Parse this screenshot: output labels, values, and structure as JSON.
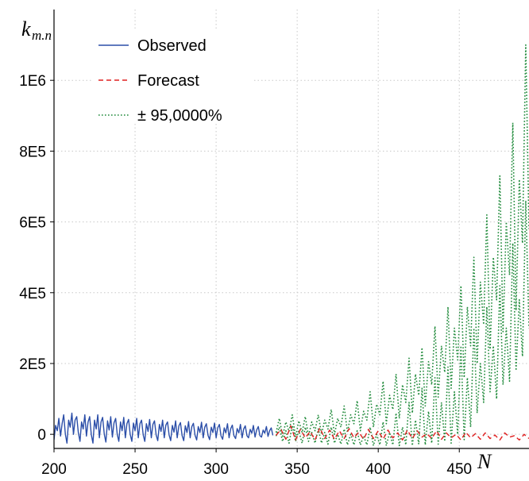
{
  "chart_data": {
    "type": "line",
    "title": "",
    "ylabel": {
      "main": "k",
      "sub": "m.n"
    },
    "xlabel": "N",
    "xlim": [
      200,
      493
    ],
    "ylim": [
      -40000,
      1200000
    ],
    "x_ticks": [
      200,
      250,
      300,
      350,
      400,
      450
    ],
    "x_tick_labels": [
      "200",
      "250",
      "300",
      "350",
      "400",
      "450"
    ],
    "y_ticks": [
      0,
      200000,
      400000,
      600000,
      800000,
      1000000
    ],
    "y_tick_labels": [
      "0",
      "2E5",
      "4E5",
      "6E5",
      "8E5",
      "1E6"
    ],
    "grid": true,
    "legend_position": "top-left",
    "colors": {
      "observed": "#2b4ea8",
      "forecast": "#e02020",
      "interval": "#1f8a3a",
      "grid": "#c8c8c8"
    },
    "series": [
      {
        "name": "Observed",
        "style": "solid",
        "x_start": 200,
        "x_step": 1,
        "values": [
          -15000,
          25000,
          10000,
          45000,
          -5000,
          30000,
          55000,
          0,
          -25000,
          40000,
          20000,
          60000,
          0,
          40000,
          50000,
          5000,
          -20000,
          35000,
          15000,
          55000,
          -5000,
          35000,
          50000,
          0,
          -25000,
          40000,
          15000,
          55000,
          -10000,
          35000,
          48000,
          0,
          -22000,
          38000,
          12000,
          50000,
          -8000,
          32000,
          45000,
          0,
          -20000,
          35000,
          10000,
          48000,
          -10000,
          30000,
          42000,
          0,
          -20000,
          32000,
          10000,
          45000,
          -10000,
          30000,
          40000,
          -2000,
          -20000,
          30000,
          8000,
          42000,
          -10000,
          28000,
          38000,
          -2000,
          -18000,
          28000,
          8000,
          40000,
          -10000,
          26000,
          35000,
          -2000,
          -18000,
          25000,
          6000,
          38000,
          -10000,
          24000,
          33000,
          -3000,
          -18000,
          24000,
          5000,
          36000,
          -10000,
          22000,
          31000,
          -3000,
          -16000,
          22000,
          5000,
          34000,
          -10000,
          20000,
          30000,
          -3000,
          -15000,
          20000,
          5000,
          32000,
          -10000,
          18000,
          28000,
          -4000,
          -14000,
          18000,
          4000,
          30000,
          -10000,
          16000,
          26000,
          -4000,
          -12000,
          16000,
          4000,
          28000,
          -10000,
          15000,
          24000,
          -4000,
          -10000,
          14000,
          3000,
          25000,
          -8000,
          12000,
          22000,
          -4000,
          -8000,
          12000,
          3000,
          22000,
          -6000,
          10000,
          18000,
          -3000
        ]
      },
      {
        "name": "Forecast",
        "style": "dashed",
        "points": [
          [
            337,
            -3000
          ],
          [
            340,
            14000
          ],
          [
            343,
            -14000
          ],
          [
            346,
            24000
          ],
          [
            349,
            -16000
          ],
          [
            352,
            14000
          ],
          [
            355,
            -10000
          ],
          [
            358,
            8000
          ],
          [
            361,
            -16000
          ],
          [
            364,
            18000
          ],
          [
            367,
            -12000
          ],
          [
            370,
            12000
          ],
          [
            373,
            -14000
          ],
          [
            376,
            10000
          ],
          [
            379,
            -12000
          ],
          [
            382,
            16000
          ],
          [
            385,
            -10000
          ],
          [
            388,
            6000
          ],
          [
            391,
            -14000
          ],
          [
            394,
            14000
          ],
          [
            397,
            -12000
          ],
          [
            400,
            10000
          ],
          [
            403,
            -14000
          ],
          [
            406,
            12000
          ],
          [
            409,
            -10000
          ],
          [
            412,
            4000
          ],
          [
            415,
            -16000
          ],
          [
            418,
            12000
          ],
          [
            421,
            -12000
          ],
          [
            424,
            10000
          ],
          [
            427,
            -8000
          ],
          [
            430,
            2000
          ],
          [
            433,
            -12000
          ],
          [
            436,
            10000
          ],
          [
            439,
            -14000
          ],
          [
            442,
            4000
          ],
          [
            445,
            -10000
          ],
          [
            448,
            0
          ],
          [
            451,
            -16000
          ],
          [
            454,
            6000
          ],
          [
            457,
            -10000
          ],
          [
            460,
            2000
          ],
          [
            463,
            -14000
          ],
          [
            466,
            4000
          ],
          [
            469,
            -12000
          ],
          [
            472,
            -2000
          ],
          [
            475,
            -16000
          ],
          [
            478,
            4000
          ],
          [
            481,
            -8000
          ],
          [
            484,
            -4000
          ],
          [
            487,
            -16000
          ],
          [
            490,
            0
          ],
          [
            493,
            -12000
          ]
        ]
      },
      {
        "name": "± 95,0000%",
        "style": "dotted",
        "upper": [
          [
            337,
            5000
          ],
          [
            339,
            45000
          ],
          [
            341,
            -5000
          ],
          [
            343,
            35000
          ],
          [
            345,
            8000
          ],
          [
            347,
            55000
          ],
          [
            349,
            -8000
          ],
          [
            351,
            38000
          ],
          [
            353,
            5000
          ],
          [
            355,
            50000
          ],
          [
            357,
            -5000
          ],
          [
            359,
            35000
          ],
          [
            361,
            10000
          ],
          [
            363,
            55000
          ],
          [
            365,
            0
          ],
          [
            367,
            40000
          ],
          [
            369,
            15000
          ],
          [
            371,
            70000
          ],
          [
            373,
            0
          ],
          [
            375,
            45000
          ],
          [
            377,
            20000
          ],
          [
            379,
            80000
          ],
          [
            381,
            5000
          ],
          [
            383,
            55000
          ],
          [
            385,
            30000
          ],
          [
            387,
            95000
          ],
          [
            389,
            10000
          ],
          [
            391,
            65000
          ],
          [
            393,
            40000
          ],
          [
            395,
            120000
          ],
          [
            397,
            20000
          ],
          [
            399,
            85000
          ],
          [
            401,
            55000
          ],
          [
            403,
            150000
          ],
          [
            405,
            30000
          ],
          [
            407,
            110000
          ],
          [
            409,
            70000
          ],
          [
            411,
            170000
          ],
          [
            413,
            45000
          ],
          [
            415,
            140000
          ],
          [
            417,
            90000
          ],
          [
            419,
            215000
          ],
          [
            421,
            60000
          ],
          [
            423,
            170000
          ],
          [
            425,
            110000
          ],
          [
            427,
            245000
          ],
          [
            429,
            80000
          ],
          [
            431,
            205000
          ],
          [
            433,
            140000
          ],
          [
            435,
            305000
          ],
          [
            437,
            105000
          ],
          [
            439,
            250000
          ],
          [
            441,
            175000
          ],
          [
            443,
            360000
          ],
          [
            445,
            130000
          ],
          [
            447,
            300000
          ],
          [
            449,
            210000
          ],
          [
            451,
            420000
          ],
          [
            453,
            160000
          ],
          [
            455,
            360000
          ],
          [
            457,
            250000
          ],
          [
            459,
            500000
          ],
          [
            461,
            200000
          ],
          [
            463,
            430000
          ],
          [
            465,
            310000
          ],
          [
            467,
            620000
          ],
          [
            469,
            240000
          ],
          [
            471,
            500000
          ],
          [
            473,
            380000
          ],
          [
            475,
            730000
          ],
          [
            477,
            290000
          ],
          [
            479,
            600000
          ],
          [
            481,
            450000
          ],
          [
            483,
            880000
          ],
          [
            485,
            350000
          ],
          [
            487,
            720000
          ],
          [
            489,
            540000
          ],
          [
            491,
            1100000
          ],
          [
            493,
            580000
          ]
        ],
        "lower": [
          [
            337,
            -5000
          ],
          [
            339,
            20000
          ],
          [
            341,
            -20000
          ],
          [
            343,
            10000
          ],
          [
            345,
            -25000
          ],
          [
            347,
            25000
          ],
          [
            349,
            -20000
          ],
          [
            351,
            10000
          ],
          [
            353,
            -25000
          ],
          [
            355,
            20000
          ],
          [
            357,
            -20000
          ],
          [
            359,
            5000
          ],
          [
            361,
            -25000
          ],
          [
            363,
            15000
          ],
          [
            365,
            -25000
          ],
          [
            367,
            5000
          ],
          [
            369,
            -28000
          ],
          [
            371,
            20000
          ],
          [
            373,
            -25000
          ],
          [
            375,
            0
          ],
          [
            377,
            -28000
          ],
          [
            379,
            15000
          ],
          [
            381,
            -30000
          ],
          [
            383,
            0
          ],
          [
            385,
            -30000
          ],
          [
            387,
            10000
          ],
          [
            389,
            -30000
          ],
          [
            391,
            -5000
          ],
          [
            393,
            -30000
          ],
          [
            395,
            20000
          ],
          [
            397,
            -32000
          ],
          [
            399,
            0
          ],
          [
            401,
            -30000
          ],
          [
            403,
            35000
          ],
          [
            405,
            -32000
          ],
          [
            407,
            5000
          ],
          [
            409,
            -30000
          ],
          [
            411,
            60000
          ],
          [
            413,
            -32000
          ],
          [
            415,
            20000
          ],
          [
            417,
            -30000
          ],
          [
            419,
            90000
          ],
          [
            421,
            -32000
          ],
          [
            423,
            40000
          ],
          [
            425,
            -28000
          ],
          [
            427,
            130000
          ],
          [
            429,
            -30000
          ],
          [
            431,
            65000
          ],
          [
            433,
            -25000
          ],
          [
            435,
            160000
          ],
          [
            437,
            -28000
          ],
          [
            439,
            90000
          ],
          [
            441,
            -20000
          ],
          [
            443,
            190000
          ],
          [
            445,
            -25000
          ],
          [
            447,
            120000
          ],
          [
            449,
            0
          ],
          [
            451,
            250000
          ],
          [
            453,
            -15000
          ],
          [
            455,
            160000
          ],
          [
            457,
            20000
          ],
          [
            459,
            300000
          ],
          [
            461,
            60000
          ],
          [
            463,
            200000
          ],
          [
            465,
            90000
          ],
          [
            467,
            360000
          ],
          [
            469,
            120000
          ],
          [
            471,
            250000
          ],
          [
            473,
            100000
          ],
          [
            475,
            420000
          ],
          [
            477,
            140000
          ],
          [
            479,
            300000
          ],
          [
            481,
            150000
          ],
          [
            483,
            540000
          ],
          [
            485,
            180000
          ],
          [
            487,
            380000
          ],
          [
            489,
            220000
          ],
          [
            491,
            660000
          ],
          [
            493,
            300000
          ]
        ]
      }
    ]
  }
}
